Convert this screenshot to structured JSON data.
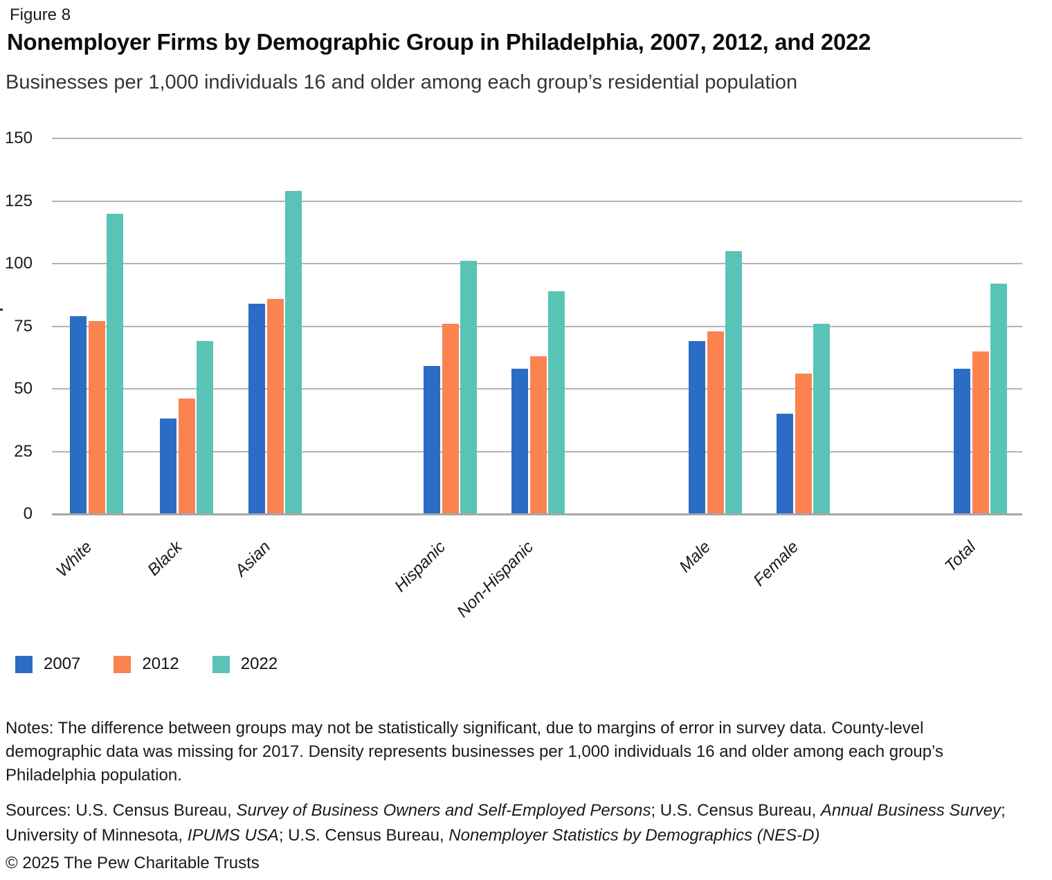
{
  "figure_label": "Figure 8",
  "title": "Nonemployer Firms by Demographic Group in Philadelphia, 2007, 2012, and 2022",
  "subtitle": "Businesses per 1,000 individuals 16 and older among each group’s residential population",
  "chart_data": {
    "type": "bar",
    "categories": [
      "White",
      "Black",
      "Asian",
      "Hispanic",
      "Non-Hispanic",
      "Male",
      "Female",
      "Total"
    ],
    "series": [
      {
        "name": "2007",
        "color": "#2b6cc4",
        "values": [
          79,
          38,
          84,
          59,
          58,
          69,
          40,
          58
        ]
      },
      {
        "name": "2012",
        "color": "#fb8350",
        "values": [
          77,
          46,
          86,
          76,
          63,
          73,
          56,
          65
        ]
      },
      {
        "name": "2022",
        "color": "#59c4b6",
        "values": [
          120,
          69,
          129,
          101,
          89,
          105,
          76,
          92
        ]
      }
    ],
    "ylim": [
      0,
      150
    ],
    "yticks": [
      0,
      25,
      50,
      75,
      100,
      125,
      150
    ],
    "grid": "horizontal",
    "xlabel": "",
    "ylabel": "",
    "legend_position": "bottom-left",
    "category_groups_with_gaps": [
      [
        "White",
        "Black",
        "Asian"
      ],
      [
        "Hispanic",
        "Non-Hispanic"
      ],
      [
        "Male",
        "Female"
      ],
      [
        "Total"
      ]
    ]
  },
  "legend": [
    {
      "label": "2007",
      "color": "#2b6cc4"
    },
    {
      "label": "2012",
      "color": "#fb8350"
    },
    {
      "label": "2022",
      "color": "#59c4b6"
    }
  ],
  "notes": "Notes: The difference between groups may not be statistically significant, due to margins of error in survey data. County-level demographic data was missing for 2017. Density represents businesses per 1,000 individuals 16 and older among each group’s Philadelphia population.",
  "sources_segments": [
    {
      "text": "Sources: U.S. Census Bureau, ",
      "italic": false
    },
    {
      "text": "Survey of Business Owners and Self-Employed Persons",
      "italic": true
    },
    {
      "text": "; U.S. Census Bureau, ",
      "italic": false
    },
    {
      "text": "Annual Business Survey",
      "italic": true
    },
    {
      "text": "; University of Minnesota, ",
      "italic": false
    },
    {
      "text": "IPUMS USA",
      "italic": true
    },
    {
      "text": "; U.S. Census Bureau, ",
      "italic": false
    },
    {
      "text": "Nonemployer Statistics by Demographics (NES-D)",
      "italic": true
    }
  ],
  "copyright": "© 2025 The Pew Charitable Trusts"
}
